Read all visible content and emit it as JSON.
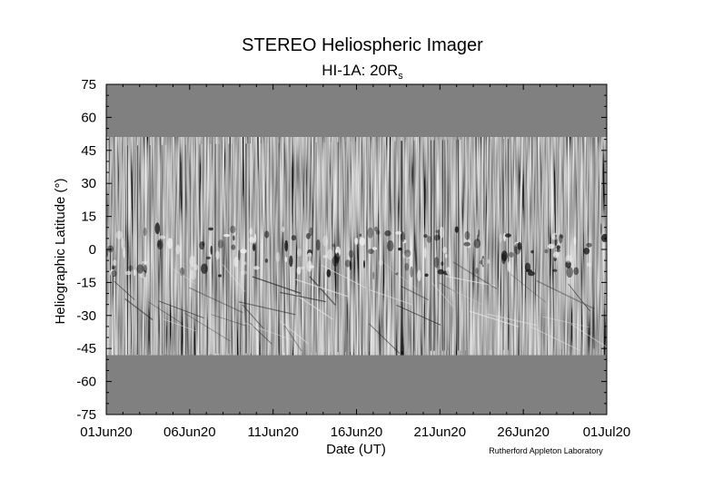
{
  "chart_data": {
    "type": "heatmap",
    "title": "STEREO Heliospheric Imager",
    "subtitle": "HI-1A: 20R",
    "subtitle_subscript": "s",
    "xlabel": "Date (UT)",
    "ylabel": "Heliographic Latitude (°)",
    "x_tick_labels": [
      "01Jun20",
      "06Jun20",
      "11Jun20",
      "16Jun20",
      "21Jun20",
      "26Jun20",
      "01Jul20"
    ],
    "x_range_days": [
      0,
      30
    ],
    "ylim": [
      -75,
      75
    ],
    "y_ticks": [
      75,
      60,
      45,
      30,
      15,
      0,
      -15,
      -30,
      -45,
      -60,
      -75
    ],
    "data_coverage_latitude": {
      "start": [
        -48,
        47
      ],
      "end": [
        -45,
        51
      ]
    },
    "background_color": "#808080",
    "credit": "Rutherford Appleton Laboratory"
  }
}
